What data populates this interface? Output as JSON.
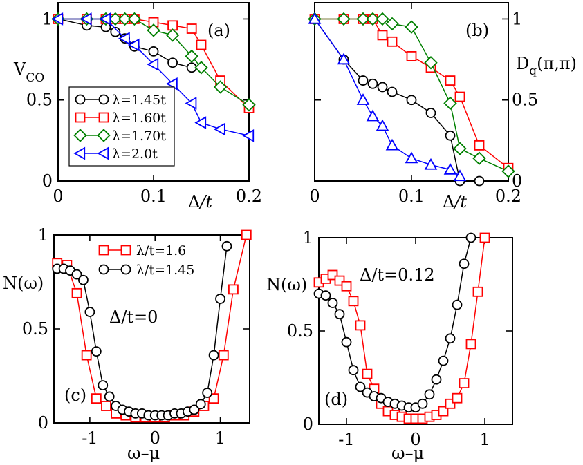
{
  "figure": {
    "panel_a_tag": "(a)",
    "panel_b_tag": "(b)",
    "panel_c_tag": "(c)",
    "panel_d_tag": "(d)",
    "ylabel_a_main": "V",
    "ylabel_a_sub": "CO",
    "ylabel_b_pre": "D",
    "ylabel_b_sub": "q",
    "ylabel_b_post": "(π,π)",
    "xlabel_top_delta": "Δ",
    "xlabel_top_rest": "/t",
    "xlabel_bottom": "ω–μ",
    "ylabel_cd": "N(ω)",
    "annot_c": "Δ/t=0",
    "annot_d": "Δ/t=0.12"
  },
  "chart_data": [
    {
      "panel": "a",
      "type": "line",
      "title": "",
      "xlabel": "Δ/t",
      "ylabel": "V_CO",
      "xlim": [
        0,
        0.2
      ],
      "ylim": [
        0,
        1.1
      ],
      "xticks": [
        "0",
        "0.1",
        "0.2"
      ],
      "yticks": [
        "0",
        "0.5",
        "1"
      ],
      "legend_position": "lower-left",
      "series": [
        {
          "name": "λ=1.45t",
          "color": "#000000",
          "marker": "circle",
          "x": [
            0,
            0.03,
            0.05,
            0.06,
            0.07,
            0.08,
            0.1,
            0.12,
            0.14
          ],
          "y": [
            1.0,
            0.96,
            0.95,
            0.92,
            0.88,
            0.83,
            0.8,
            0.73,
            0.7
          ]
        },
        {
          "name": "λ=1.60t",
          "color": "#ff0000",
          "marker": "square",
          "x": [
            0,
            0.03,
            0.05,
            0.06,
            0.07,
            0.08,
            0.1,
            0.12,
            0.14,
            0.15,
            0.17,
            0.2
          ],
          "y": [
            1.0,
            1.0,
            1.0,
            1.0,
            1.0,
            1.0,
            0.98,
            0.96,
            0.94,
            0.84,
            0.62,
            0.45
          ]
        },
        {
          "name": "λ=1.70t",
          "color": "#008000",
          "marker": "diamond",
          "x": [
            0,
            0.03,
            0.05,
            0.06,
            0.07,
            0.08,
            0.1,
            0.12,
            0.14,
            0.15,
            0.17,
            0.2
          ],
          "y": [
            1.0,
            1.0,
            1.0,
            1.0,
            1.0,
            1.0,
            0.93,
            0.9,
            0.77,
            0.7,
            0.58,
            0.47
          ]
        },
        {
          "name": "λ=2.0t",
          "color": "#0000ff",
          "marker": "triangle-left",
          "x": [
            0,
            0.03,
            0.05,
            0.07,
            0.08,
            0.1,
            0.12,
            0.14,
            0.15,
            0.17,
            0.2
          ],
          "y": [
            1.0,
            1.0,
            1.0,
            0.88,
            0.84,
            0.72,
            0.6,
            0.48,
            0.36,
            0.32,
            0.28
          ]
        }
      ]
    },
    {
      "panel": "b",
      "type": "line",
      "title": "",
      "xlabel": "Δ/t",
      "ylabel": "D_q(π,π)",
      "xlim": [
        0,
        0.2
      ],
      "ylim": [
        0,
        1.1
      ],
      "xticks": [
        "0",
        "0.1",
        "0.2"
      ],
      "yticks": [
        "0",
        "0.5",
        "1"
      ],
      "series": [
        {
          "name": "λ=1.45t",
          "color": "#000000",
          "marker": "circle",
          "x": [
            0,
            0.03,
            0.05,
            0.06,
            0.07,
            0.08,
            0.1,
            0.12,
            0.14,
            0.15,
            0.17
          ],
          "y": [
            1.0,
            0.75,
            0.62,
            0.6,
            0.58,
            0.55,
            0.5,
            0.42,
            0.28,
            0.0,
            0.0
          ]
        },
        {
          "name": "λ=1.60t",
          "color": "#ff0000",
          "marker": "square",
          "x": [
            0,
            0.03,
            0.05,
            0.06,
            0.07,
            0.08,
            0.1,
            0.12,
            0.14,
            0.15,
            0.17,
            0.2
          ],
          "y": [
            1.0,
            1.0,
            1.0,
            1.0,
            0.9,
            0.86,
            0.77,
            0.7,
            0.62,
            0.52,
            0.22,
            0.08
          ]
        },
        {
          "name": "λ=1.70t",
          "color": "#008000",
          "marker": "diamond",
          "x": [
            0,
            0.03,
            0.05,
            0.06,
            0.07,
            0.08,
            0.1,
            0.12,
            0.14,
            0.15,
            0.17,
            0.2
          ],
          "y": [
            1.0,
            1.0,
            1.0,
            1.0,
            1.0,
            0.97,
            0.95,
            0.73,
            0.48,
            0.2,
            0.14,
            0.06
          ]
        },
        {
          "name": "λ=2.0t",
          "color": "#0000ff",
          "marker": "triangle-up",
          "x": [
            0,
            0.03,
            0.05,
            0.06,
            0.07,
            0.08,
            0.1,
            0.12,
            0.14,
            0.15
          ],
          "y": [
            1.0,
            0.75,
            0.5,
            0.4,
            0.34,
            0.22,
            0.14,
            0.1,
            0.07,
            0.03
          ]
        }
      ]
    },
    {
      "panel": "c",
      "type": "line",
      "title": "",
      "xlabel": "ω–μ",
      "ylabel": "N(ω)",
      "xlim": [
        -1.55,
        1.45
      ],
      "ylim": [
        0,
        1.0
      ],
      "xticks": [
        "-1",
        "0",
        "1"
      ],
      "yticks": [
        "0",
        "0.5",
        "1"
      ],
      "legend_position": "top-left",
      "series": [
        {
          "name": "λ/t=1.6",
          "color": "#ff0000",
          "marker": "square",
          "x": [
            -1.5,
            -1.35,
            -1.2,
            -1.05,
            -0.9,
            -0.75,
            -0.6,
            -0.45,
            -0.3,
            -0.15,
            0.0,
            0.15,
            0.3,
            0.45,
            0.6,
            0.75,
            0.9,
            1.05,
            1.2,
            1.4
          ],
          "y": [
            0.85,
            0.84,
            0.69,
            0.36,
            0.13,
            0.09,
            0.05,
            0.04,
            0.03,
            0.03,
            0.03,
            0.03,
            0.04,
            0.04,
            0.06,
            0.09,
            0.13,
            0.36,
            0.71,
            1.0
          ]
        },
        {
          "name": "λ/t=1.45",
          "color": "#000000",
          "marker": "circle",
          "x": [
            -1.5,
            -1.4,
            -1.3,
            -1.2,
            -1.1,
            -1.0,
            -0.9,
            -0.8,
            -0.7,
            -0.6,
            -0.5,
            -0.4,
            -0.3,
            -0.2,
            -0.1,
            0.0,
            0.1,
            0.2,
            0.3,
            0.4,
            0.5,
            0.6,
            0.7,
            0.8,
            0.9,
            1.0,
            1.1
          ],
          "y": [
            0.82,
            0.82,
            0.81,
            0.79,
            0.76,
            0.59,
            0.38,
            0.2,
            0.14,
            0.09,
            0.07,
            0.06,
            0.05,
            0.05,
            0.04,
            0.04,
            0.04,
            0.04,
            0.05,
            0.05,
            0.06,
            0.07,
            0.1,
            0.16,
            0.36,
            0.66,
            0.94
          ]
        }
      ]
    },
    {
      "panel": "d",
      "type": "line",
      "title": "",
      "xlabel": "ω–μ",
      "ylabel": "N(ω)",
      "xlim": [
        -1.4,
        1.4
      ],
      "ylim": [
        0,
        1.0
      ],
      "xticks": [
        "-1",
        "0",
        "1"
      ],
      "yticks": [
        "0",
        "0.5",
        "1"
      ],
      "series": [
        {
          "name": "λ/t=1.6",
          "color": "#ff0000",
          "marker": "square",
          "x": [
            -1.4,
            -1.3,
            -1.2,
            -1.1,
            -1.0,
            -0.9,
            -0.8,
            -0.7,
            -0.6,
            -0.5,
            -0.4,
            -0.3,
            -0.2,
            -0.1,
            0.0,
            0.1,
            0.2,
            0.3,
            0.4,
            0.5,
            0.6,
            0.7,
            0.8,
            0.9,
            1.0
          ],
          "y": [
            0.76,
            0.78,
            0.8,
            0.77,
            0.74,
            0.66,
            0.53,
            0.27,
            0.19,
            0.11,
            0.07,
            0.05,
            0.04,
            0.03,
            0.03,
            0.03,
            0.04,
            0.05,
            0.07,
            0.11,
            0.14,
            0.22,
            0.43,
            0.71,
            1.0
          ]
        },
        {
          "name": "λ/t=1.45",
          "color": "#000000",
          "marker": "circle",
          "x": [
            -1.4,
            -1.3,
            -1.2,
            -1.1,
            -1.0,
            -0.9,
            -0.8,
            -0.7,
            -0.6,
            -0.5,
            -0.4,
            -0.3,
            -0.2,
            -0.1,
            0.0,
            0.1,
            0.2,
            0.3,
            0.4,
            0.5,
            0.6,
            0.7,
            0.8
          ],
          "y": [
            0.7,
            0.69,
            0.65,
            0.59,
            0.44,
            0.29,
            0.2,
            0.17,
            0.15,
            0.14,
            0.12,
            0.11,
            0.1,
            0.09,
            0.09,
            0.11,
            0.16,
            0.24,
            0.34,
            0.46,
            0.64,
            0.86,
            1.0
          ]
        }
      ]
    }
  ]
}
